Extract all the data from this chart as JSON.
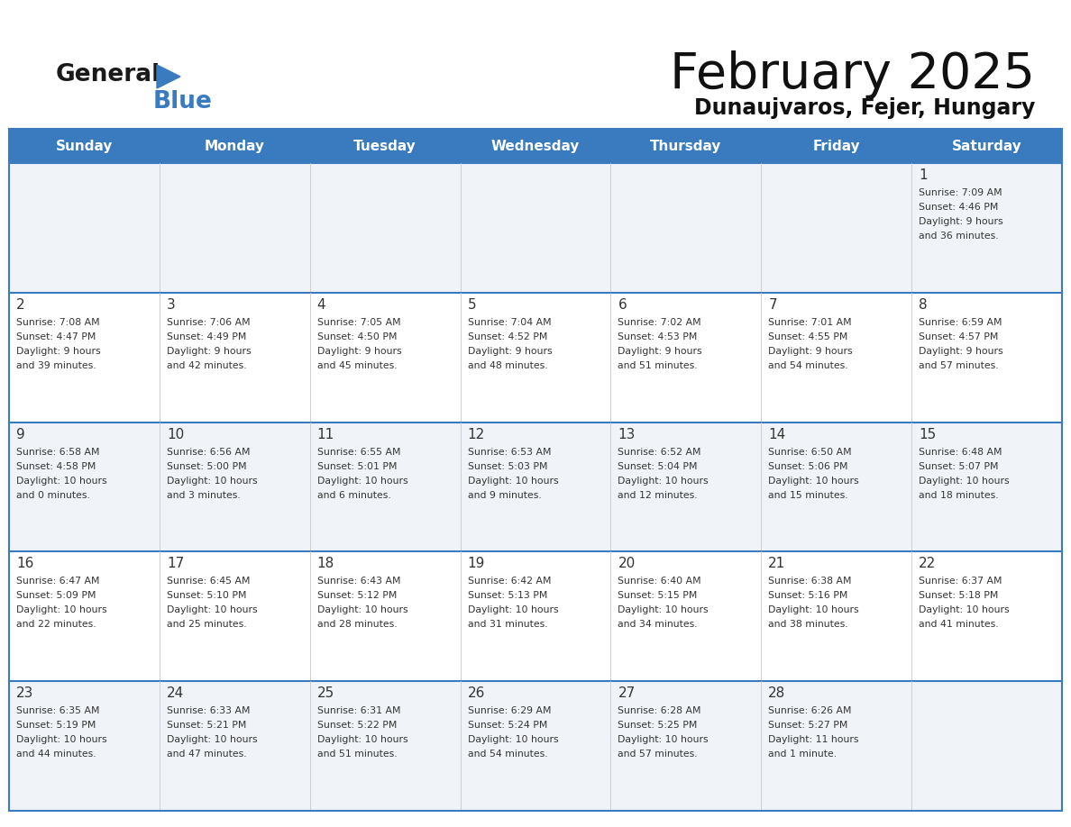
{
  "title": "February 2025",
  "subtitle": "Dunaujvaros, Fejer, Hungary",
  "header_color": "#3a7bbf",
  "header_text_color": "#ffffff",
  "border_color": "#3a7bbf",
  "text_color": "#333333",
  "days_of_week": [
    "Sunday",
    "Monday",
    "Tuesday",
    "Wednesday",
    "Thursday",
    "Friday",
    "Saturday"
  ],
  "calendar_data": [
    [
      null,
      null,
      null,
      null,
      null,
      null,
      {
        "day": 1,
        "sunrise": "7:09 AM",
        "sunset": "4:46 PM",
        "daylight_line1": "9 hours",
        "daylight_line2": "and 36 minutes."
      }
    ],
    [
      {
        "day": 2,
        "sunrise": "7:08 AM",
        "sunset": "4:47 PM",
        "daylight_line1": "9 hours",
        "daylight_line2": "and 39 minutes."
      },
      {
        "day": 3,
        "sunrise": "7:06 AM",
        "sunset": "4:49 PM",
        "daylight_line1": "9 hours",
        "daylight_line2": "and 42 minutes."
      },
      {
        "day": 4,
        "sunrise": "7:05 AM",
        "sunset": "4:50 PM",
        "daylight_line1": "9 hours",
        "daylight_line2": "and 45 minutes."
      },
      {
        "day": 5,
        "sunrise": "7:04 AM",
        "sunset": "4:52 PM",
        "daylight_line1": "9 hours",
        "daylight_line2": "and 48 minutes."
      },
      {
        "day": 6,
        "sunrise": "7:02 AM",
        "sunset": "4:53 PM",
        "daylight_line1": "9 hours",
        "daylight_line2": "and 51 minutes."
      },
      {
        "day": 7,
        "sunrise": "7:01 AM",
        "sunset": "4:55 PM",
        "daylight_line1": "9 hours",
        "daylight_line2": "and 54 minutes."
      },
      {
        "day": 8,
        "sunrise": "6:59 AM",
        "sunset": "4:57 PM",
        "daylight_line1": "9 hours",
        "daylight_line2": "and 57 minutes."
      }
    ],
    [
      {
        "day": 9,
        "sunrise": "6:58 AM",
        "sunset": "4:58 PM",
        "daylight_line1": "10 hours",
        "daylight_line2": "and 0 minutes."
      },
      {
        "day": 10,
        "sunrise": "6:56 AM",
        "sunset": "5:00 PM",
        "daylight_line1": "10 hours",
        "daylight_line2": "and 3 minutes."
      },
      {
        "day": 11,
        "sunrise": "6:55 AM",
        "sunset": "5:01 PM",
        "daylight_line1": "10 hours",
        "daylight_line2": "and 6 minutes."
      },
      {
        "day": 12,
        "sunrise": "6:53 AM",
        "sunset": "5:03 PM",
        "daylight_line1": "10 hours",
        "daylight_line2": "and 9 minutes."
      },
      {
        "day": 13,
        "sunrise": "6:52 AM",
        "sunset": "5:04 PM",
        "daylight_line1": "10 hours",
        "daylight_line2": "and 12 minutes."
      },
      {
        "day": 14,
        "sunrise": "6:50 AM",
        "sunset": "5:06 PM",
        "daylight_line1": "10 hours",
        "daylight_line2": "and 15 minutes."
      },
      {
        "day": 15,
        "sunrise": "6:48 AM",
        "sunset": "5:07 PM",
        "daylight_line1": "10 hours",
        "daylight_line2": "and 18 minutes."
      }
    ],
    [
      {
        "day": 16,
        "sunrise": "6:47 AM",
        "sunset": "5:09 PM",
        "daylight_line1": "10 hours",
        "daylight_line2": "and 22 minutes."
      },
      {
        "day": 17,
        "sunrise": "6:45 AM",
        "sunset": "5:10 PM",
        "daylight_line1": "10 hours",
        "daylight_line2": "and 25 minutes."
      },
      {
        "day": 18,
        "sunrise": "6:43 AM",
        "sunset": "5:12 PM",
        "daylight_line1": "10 hours",
        "daylight_line2": "and 28 minutes."
      },
      {
        "day": 19,
        "sunrise": "6:42 AM",
        "sunset": "5:13 PM",
        "daylight_line1": "10 hours",
        "daylight_line2": "and 31 minutes."
      },
      {
        "day": 20,
        "sunrise": "6:40 AM",
        "sunset": "5:15 PM",
        "daylight_line1": "10 hours",
        "daylight_line2": "and 34 minutes."
      },
      {
        "day": 21,
        "sunrise": "6:38 AM",
        "sunset": "5:16 PM",
        "daylight_line1": "10 hours",
        "daylight_line2": "and 38 minutes."
      },
      {
        "day": 22,
        "sunrise": "6:37 AM",
        "sunset": "5:18 PM",
        "daylight_line1": "10 hours",
        "daylight_line2": "and 41 minutes."
      }
    ],
    [
      {
        "day": 23,
        "sunrise": "6:35 AM",
        "sunset": "5:19 PM",
        "daylight_line1": "10 hours",
        "daylight_line2": "and 44 minutes."
      },
      {
        "day": 24,
        "sunrise": "6:33 AM",
        "sunset": "5:21 PM",
        "daylight_line1": "10 hours",
        "daylight_line2": "and 47 minutes."
      },
      {
        "day": 25,
        "sunrise": "6:31 AM",
        "sunset": "5:22 PM",
        "daylight_line1": "10 hours",
        "daylight_line2": "and 51 minutes."
      },
      {
        "day": 26,
        "sunrise": "6:29 AM",
        "sunset": "5:24 PM",
        "daylight_line1": "10 hours",
        "daylight_line2": "and 54 minutes."
      },
      {
        "day": 27,
        "sunrise": "6:28 AM",
        "sunset": "5:25 PM",
        "daylight_line1": "10 hours",
        "daylight_line2": "and 57 minutes."
      },
      {
        "day": 28,
        "sunrise": "6:26 AM",
        "sunset": "5:27 PM",
        "daylight_line1": "11 hours",
        "daylight_line2": "and 1 minute."
      },
      null
    ]
  ]
}
